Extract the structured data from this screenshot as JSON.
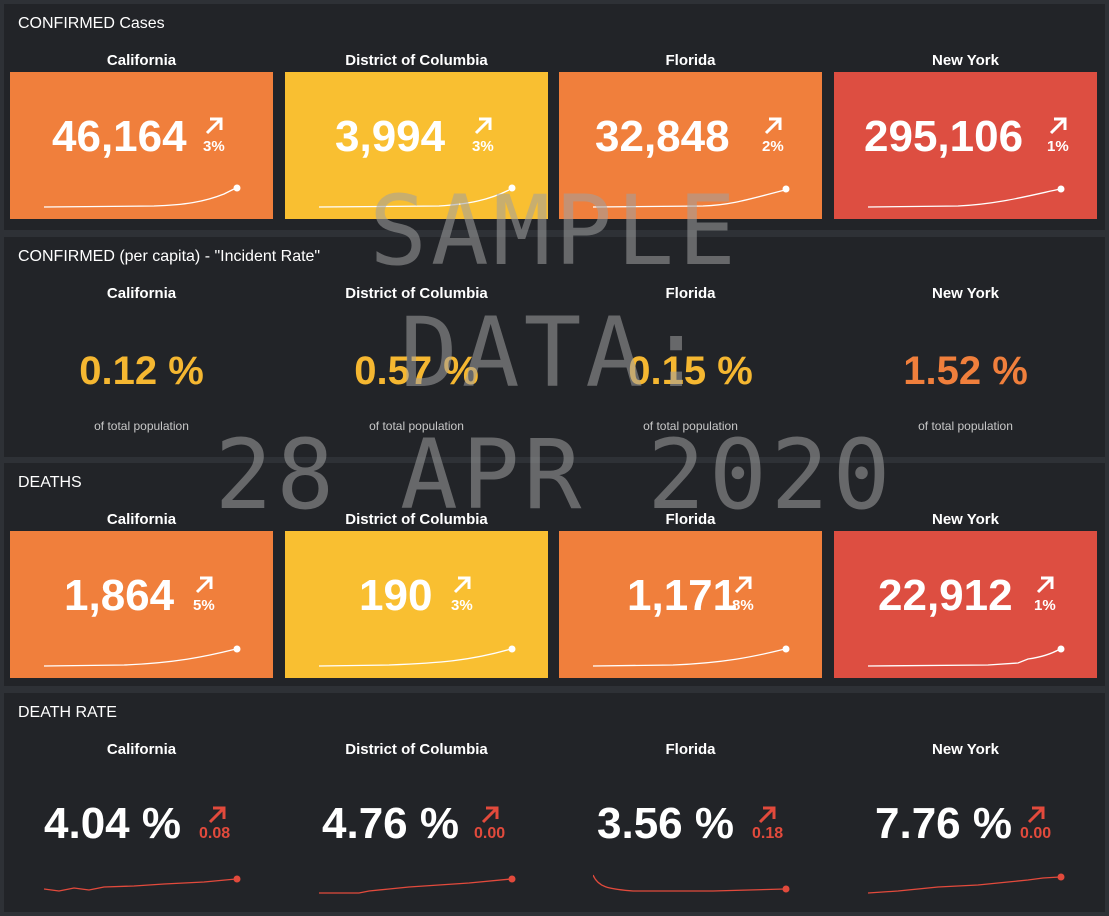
{
  "colors": {
    "orange": "#f07f3c",
    "yellow": "#f9bf31",
    "red": "#dd4e41",
    "rate_yellow": "#f5b731",
    "rate_orange": "#f07f3c",
    "delta_red": "#e24a3c"
  },
  "states": [
    "California",
    "District of Columbia",
    "Florida",
    "New York"
  ],
  "confirmed": {
    "title": "CONFIRMED Cases",
    "tiles": [
      {
        "value": "46,164",
        "change": "3%",
        "trend_icon": "arrow-up-right-icon",
        "color": "orange"
      },
      {
        "value": "3,994",
        "change": "3%",
        "trend_icon": "arrow-up-right-icon",
        "color": "yellow"
      },
      {
        "value": "32,848",
        "change": "2%",
        "trend_icon": "arrow-up-right-icon",
        "color": "orange"
      },
      {
        "value": "295,106",
        "change": "1%",
        "trend_icon": "arrow-up-right-icon",
        "color": "red"
      }
    ]
  },
  "incident": {
    "title": "CONFIRMED (per capita) - \"Incident Rate\"",
    "subtitle": "of total population",
    "rates": [
      {
        "value": "0.12 %",
        "color": "rate_yellow"
      },
      {
        "value": "0.57 %",
        "color": "rate_yellow"
      },
      {
        "value": "0.15 %",
        "color": "rate_yellow"
      },
      {
        "value": "1.52 %",
        "color": "rate_orange"
      }
    ]
  },
  "deaths": {
    "title": "DEATHS",
    "tiles": [
      {
        "value": "1,864",
        "change": "5%",
        "trend_icon": "arrow-up-right-icon",
        "color": "orange"
      },
      {
        "value": "190",
        "change": "3%",
        "trend_icon": "arrow-up-right-icon",
        "color": "yellow"
      },
      {
        "value": "1,171",
        "change": "8%",
        "trend_icon": "arrow-up-right-icon",
        "color": "orange"
      },
      {
        "value": "22,912",
        "change": "1%",
        "trend_icon": "arrow-up-right-icon",
        "color": "red"
      }
    ]
  },
  "death_rate": {
    "title": "DEATH RATE",
    "rates": [
      {
        "value": "4.04 %",
        "delta": "0.08",
        "trend_icon": "arrow-up-right-icon"
      },
      {
        "value": "4.76 %",
        "delta": "0.00",
        "trend_icon": "arrow-up-right-icon"
      },
      {
        "value": "3.56 %",
        "delta": "0.18",
        "trend_icon": "arrow-up-right-icon"
      },
      {
        "value": "7.76 %",
        "delta": "0.00",
        "trend_icon": "arrow-up-right-icon"
      }
    ]
  },
  "watermark": [
    "SAMPLE",
    "DATA:",
    "28 APR 2020"
  ]
}
